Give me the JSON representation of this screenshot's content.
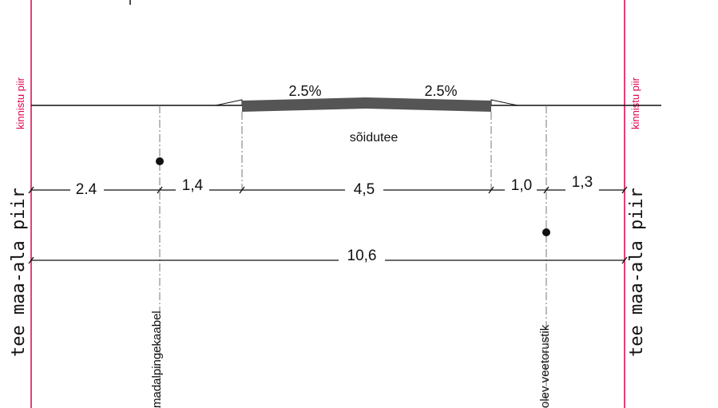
{
  "colors": {
    "boundary": "#e0004d",
    "line": "#111111",
    "pavement": "#555555",
    "dash": "#777777"
  },
  "labels": {
    "property_boundary_left": "kinnistu piir",
    "property_boundary_right": "kinnistu piir",
    "road_area_left": "tee maa-ala piir",
    "road_area_right": "tee maa-ala piir",
    "carriageway": "sõidutee",
    "slope_left": "2.5%",
    "slope_right": "2.5%",
    "cable": "madalpingekaabel",
    "water": "olev veetorustik"
  },
  "dimensions": {
    "d1": "2.4",
    "d2": "1,4",
    "d3": "4,5",
    "d4": "1,0",
    "d5": "1,3",
    "total": "10,6"
  }
}
